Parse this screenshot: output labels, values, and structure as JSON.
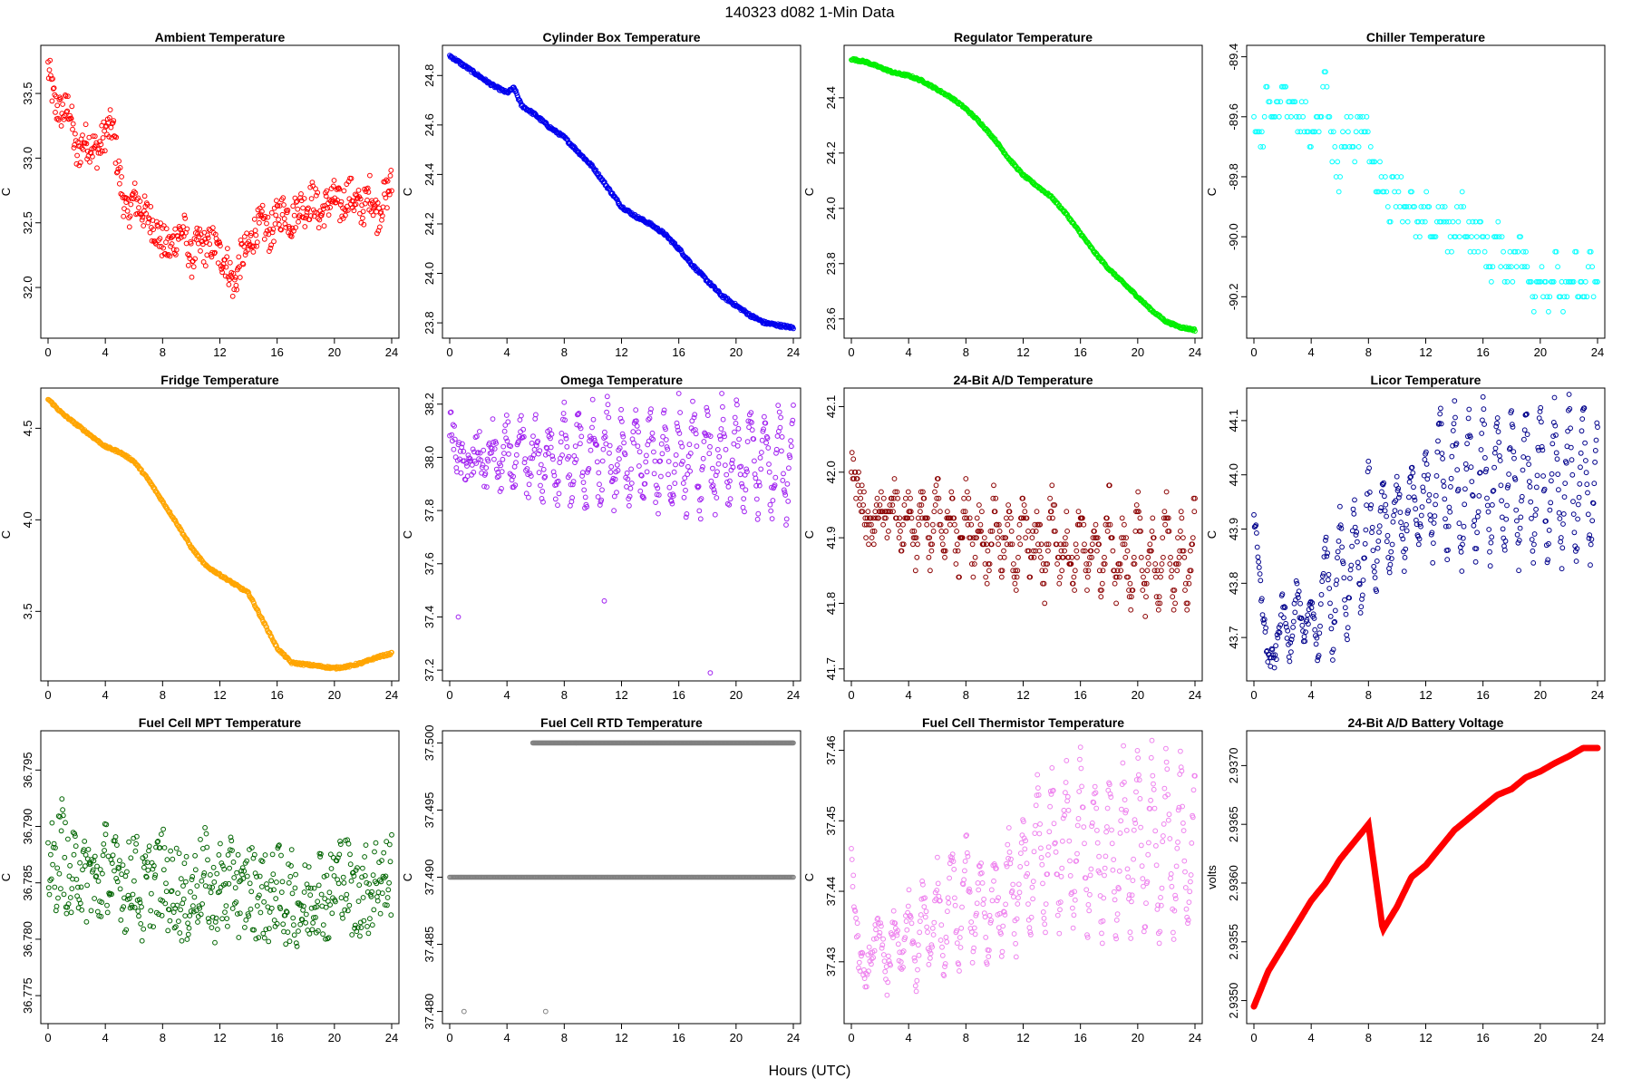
{
  "header": {
    "title": "140323    d082    1-Min Data"
  },
  "footer": {
    "xlabel": "Hours (UTC)"
  },
  "chart_data": [
    {
      "type": "scatter",
      "title": "Ambient Temperature",
      "ylabel": "C",
      "color": "#ff0000",
      "xlim": [
        0,
        24
      ],
      "ylim": [
        31.65,
        33.83
      ],
      "xticks": [
        0,
        4,
        8,
        12,
        16,
        20,
        24
      ],
      "yticks": [
        32.0,
        32.5,
        33.0,
        33.5
      ],
      "ytick_labels": [
        "32.0",
        "32.5",
        "33.0",
        "33.5"
      ],
      "x": [
        0,
        0.5,
        1,
        1.5,
        2,
        2.5,
        3,
        3.5,
        4,
        4.5,
        5,
        5.5,
        6,
        6.5,
        7,
        7.5,
        8,
        8.5,
        9,
        9.5,
        10,
        10.5,
        11,
        11.5,
        12,
        12.5,
        13,
        13.5,
        14,
        14.5,
        15,
        15.5,
        16,
        16.5,
        17,
        17.5,
        18,
        18.5,
        19,
        19.5,
        20,
        20.5,
        21,
        21.5,
        22,
        22.5,
        23,
        23.5,
        24
      ],
      "values": [
        33.7,
        33.4,
        33.35,
        33.4,
        33.0,
        33.15,
        33.1,
        33.05,
        33.2,
        33.25,
        32.85,
        32.55,
        32.7,
        32.6,
        32.55,
        32.45,
        32.35,
        32.3,
        32.4,
        32.45,
        32.2,
        32.35,
        32.3,
        32.35,
        32.25,
        32.2,
        32.0,
        32.25,
        32.3,
        32.45,
        32.5,
        32.4,
        32.55,
        32.6,
        32.5,
        32.65,
        32.6,
        32.7,
        32.55,
        32.65,
        32.7,
        32.6,
        32.75,
        32.65,
        32.6,
        32.75,
        32.55,
        32.7,
        32.8
      ]
    },
    {
      "type": "scatter",
      "title": "Cylinder Box Temperature",
      "ylabel": "C",
      "color": "#0000ee",
      "xlim": [
        0,
        24
      ],
      "ylim": [
        23.76,
        24.9
      ],
      "xticks": [
        0,
        4,
        8,
        12,
        16,
        20,
        24
      ],
      "yticks": [
        23.8,
        24.0,
        24.2,
        24.4,
        24.6,
        24.8
      ],
      "ytick_labels": [
        "23.8",
        "24.0",
        "24.2",
        "24.4",
        "24.6",
        "24.8"
      ],
      "x": [
        0,
        1,
        2,
        3,
        4,
        4.5,
        5,
        6,
        7,
        8,
        9,
        10,
        11,
        12,
        13,
        14,
        15,
        16,
        17,
        18,
        19,
        20,
        21,
        22,
        23,
        24
      ],
      "values": [
        24.88,
        24.84,
        24.8,
        24.76,
        24.73,
        24.75,
        24.68,
        24.64,
        24.59,
        24.55,
        24.49,
        24.43,
        24.35,
        24.27,
        24.23,
        24.2,
        24.16,
        24.1,
        24.03,
        23.97,
        23.91,
        23.87,
        23.83,
        23.8,
        23.79,
        23.78
      ]
    },
    {
      "type": "scatter",
      "title": "Regulator Temperature",
      "ylabel": "C",
      "color": "#00ee00",
      "xlim": [
        0,
        24
      ],
      "ylim": [
        23.55,
        24.57
      ],
      "xticks": [
        0,
        4,
        8,
        12,
        16,
        20,
        24
      ],
      "yticks": [
        23.6,
        23.8,
        24.0,
        24.2,
        24.4
      ],
      "ytick_labels": [
        "23.6",
        "23.8",
        "24.0",
        "24.2",
        "24.4"
      ],
      "x": [
        0,
        1,
        2,
        3,
        4,
        5,
        6,
        7,
        8,
        9,
        10,
        11,
        12,
        13,
        14,
        15,
        16,
        17,
        18,
        19,
        20,
        21,
        22,
        23,
        24
      ],
      "values": [
        24.54,
        24.53,
        24.51,
        24.49,
        24.48,
        24.46,
        24.43,
        24.4,
        24.36,
        24.31,
        24.25,
        24.18,
        24.12,
        24.08,
        24.04,
        23.98,
        23.91,
        23.84,
        23.78,
        23.73,
        23.68,
        23.63,
        23.59,
        23.57,
        23.56
      ]
    },
    {
      "type": "scatter",
      "title": "Chiller Temperature",
      "ylabel": "C",
      "color": "#00ffff",
      "xlim": [
        0,
        24
      ],
      "ylim": [
        -90.32,
        -89.38
      ],
      "xticks": [
        0,
        4,
        8,
        12,
        16,
        20,
        24
      ],
      "yticks": [
        -89.4,
        -89.6,
        -89.8,
        -90.0,
        -90.2
      ],
      "ytick_labels": [
        "-89.4",
        "-89.6",
        "-89.8",
        "-90.0",
        "-90.2"
      ],
      "x": [
        0,
        0.5,
        1,
        1.5,
        2,
        2.5,
        3,
        3.5,
        4,
        4.5,
        5,
        5.5,
        6,
        6.5,
        7,
        7.5,
        8,
        8.5,
        9,
        9.5,
        10,
        10.5,
        11,
        11.5,
        12,
        12.5,
        13,
        13.5,
        14,
        14.5,
        15,
        15.5,
        16,
        16.5,
        17,
        17.5,
        18,
        18.5,
        19,
        19.5,
        20,
        20.5,
        21,
        21.5,
        22,
        22.5,
        23,
        23.5,
        24
      ],
      "values": [
        -89.6,
        -89.7,
        -89.5,
        -89.6,
        -89.5,
        -89.6,
        -89.6,
        -89.6,
        -89.7,
        -89.6,
        -89.5,
        -89.7,
        -89.8,
        -89.6,
        -89.7,
        -89.6,
        -89.7,
        -89.8,
        -89.8,
        -89.9,
        -89.8,
        -89.9,
        -89.9,
        -90.0,
        -89.9,
        -90.0,
        -89.9,
        -90.0,
        -90.0,
        -89.9,
        -90.0,
        -90.0,
        -90.0,
        -90.1,
        -90.0,
        -90.1,
        -90.1,
        -90.0,
        -90.1,
        -90.2,
        -90.1,
        -90.2,
        -90.1,
        -90.2,
        -90.2,
        -90.1,
        -90.2,
        -90.1,
        -90.2
      ]
    },
    {
      "type": "scatter",
      "title": "Fridge Temperature",
      "ylabel": "C",
      "color": "#ffa500",
      "xlim": [
        0,
        24
      ],
      "ylim": [
        3.15,
        4.69
      ],
      "xticks": [
        0,
        4,
        8,
        12,
        16,
        20,
        24
      ],
      "yticks": [
        3.5,
        4.0,
        4.5
      ],
      "ytick_labels": [
        "3.5",
        "4.0",
        "4.5"
      ],
      "x": [
        0,
        1,
        2,
        3,
        4,
        5,
        6,
        7,
        8,
        9,
        10,
        11,
        12,
        13,
        14,
        15,
        16,
        17,
        18,
        19,
        20,
        21,
        22,
        23,
        24
      ],
      "values": [
        4.66,
        4.58,
        4.52,
        4.46,
        4.4,
        4.37,
        4.32,
        4.22,
        4.1,
        3.98,
        3.85,
        3.75,
        3.7,
        3.65,
        3.6,
        3.45,
        3.3,
        3.22,
        3.21,
        3.2,
        3.19,
        3.2,
        3.22,
        3.25,
        3.27
      ]
    },
    {
      "type": "scatter",
      "title": "Omega Temperature",
      "ylabel": "C",
      "color": "#a020f0",
      "xlim": [
        0,
        24
      ],
      "ylim": [
        37.18,
        38.24
      ],
      "xticks": [
        0,
        4,
        8,
        12,
        16,
        20,
        24
      ],
      "yticks": [
        37.2,
        37.4,
        37.6,
        37.8,
        38.0,
        38.2
      ],
      "ytick_labels": [
        "37.2",
        "37.4",
        "37.6",
        "37.8",
        "38.0",
        "38.2"
      ],
      "x": [
        0,
        0.5,
        1,
        1.5,
        2,
        2.5,
        3,
        3.5,
        4,
        4.5,
        5,
        5.5,
        6,
        6.5,
        7,
        7.5,
        8,
        8.5,
        9,
        9.5,
        10,
        10.5,
        11,
        11.5,
        12,
        12.5,
        13,
        13.5,
        14,
        14.5,
        15,
        15.5,
        16,
        16.5,
        17,
        17.5,
        18,
        18.5,
        19,
        19.5,
        20,
        20.5,
        21,
        21.5,
        22,
        22.5,
        23,
        23.5,
        24
      ],
      "values": [
        38.15,
        38.0,
        37.98,
        37.95,
        38.05,
        37.92,
        38.08,
        37.9,
        38.1,
        37.88,
        38.12,
        37.86,
        38.13,
        37.85,
        38.14,
        37.84,
        38.15,
        37.83,
        38.16,
        37.82,
        38.16,
        37.82,
        38.17,
        37.81,
        38.17,
        37.81,
        38.18,
        37.8,
        38.18,
        37.8,
        38.18,
        37.8,
        38.18,
        37.8,
        38.18,
        37.8,
        38.18,
        37.8,
        38.18,
        37.8,
        38.18,
        37.8,
        38.18,
        37.8,
        38.18,
        37.8,
        38.18,
        37.8,
        38.2
      ],
      "outliers": [
        [
          0.6,
          37.4
        ],
        [
          10.8,
          37.46
        ],
        [
          18.2,
          37.19
        ]
      ]
    },
    {
      "type": "scatter",
      "title": "24-Bit A/D Temperature",
      "ylabel": "C",
      "color": "#8b0000",
      "xlim": [
        0,
        24
      ],
      "ylim": [
        41.69,
        42.12
      ],
      "xticks": [
        0,
        4,
        8,
        12,
        16,
        20,
        24
      ],
      "yticks": [
        41.7,
        41.8,
        41.9,
        42.0,
        42.1
      ],
      "ytick_labels": [
        "41.7",
        "41.8",
        "41.9",
        "42.0",
        "42.1"
      ],
      "x": [
        0,
        0.5,
        1,
        1.5,
        2,
        2.5,
        3,
        3.5,
        4,
        4.5,
        5,
        5.5,
        6,
        6.5,
        7,
        7.5,
        8,
        8.5,
        9,
        9.5,
        10,
        10.5,
        11,
        11.5,
        12,
        12.5,
        13,
        13.5,
        14,
        14.5,
        15,
        15.5,
        16,
        16.5,
        17,
        17.5,
        18,
        18.5,
        19,
        19.5,
        20,
        20.5,
        21,
        21.5,
        22,
        22.5,
        23,
        23.5,
        24
      ],
      "values": [
        42.02,
        41.98,
        41.93,
        41.9,
        41.95,
        41.92,
        41.97,
        41.9,
        41.96,
        41.88,
        41.97,
        41.86,
        41.98,
        41.88,
        41.96,
        41.85,
        41.97,
        41.87,
        41.94,
        41.85,
        41.96,
        41.86,
        41.93,
        41.84,
        41.95,
        41.86,
        41.92,
        41.83,
        41.97,
        41.85,
        41.92,
        41.83,
        41.95,
        41.82,
        41.93,
        41.82,
        41.96,
        41.81,
        41.92,
        41.8,
        41.95,
        41.8,
        41.92,
        41.79,
        41.96,
        41.8,
        41.92,
        41.8,
        41.97
      ]
    },
    {
      "type": "scatter",
      "title": "Licor Temperature",
      "ylabel": "C",
      "color": "#00008b",
      "xlim": [
        0,
        24
      ],
      "ylim": [
        43.63,
        44.15
      ],
      "xticks": [
        0,
        4,
        8,
        12,
        16,
        20,
        24
      ],
      "yticks": [
        43.7,
        43.8,
        43.9,
        44.0,
        44.1
      ],
      "ytick_labels": [
        "43.7",
        "43.8",
        "43.9",
        "44.0",
        "44.1"
      ],
      "x": [
        0,
        0.5,
        1,
        1.5,
        2,
        2.5,
        3,
        3.5,
        4,
        4.5,
        5,
        5.5,
        6,
        6.5,
        7,
        7.5,
        8,
        8.5,
        9,
        9.5,
        10,
        10.5,
        11,
        11.5,
        12,
        12.5,
        13,
        13.5,
        14,
        14.5,
        15,
        15.5,
        16,
        16.5,
        17,
        17.5,
        18,
        18.5,
        19,
        19.5,
        20,
        20.5,
        21,
        21.5,
        22,
        22.5,
        23,
        23.5,
        24
      ],
      "values": [
        43.93,
        43.78,
        43.66,
        43.66,
        43.77,
        43.67,
        43.8,
        43.68,
        43.78,
        43.66,
        43.9,
        43.67,
        43.93,
        43.7,
        43.95,
        43.74,
        44.02,
        43.78,
        44.0,
        43.82,
        44.0,
        43.84,
        44.02,
        43.86,
        44.05,
        43.85,
        44.13,
        43.84,
        44.13,
        43.83,
        44.12,
        43.84,
        44.13,
        43.84,
        44.13,
        43.84,
        44.13,
        43.84,
        44.13,
        43.84,
        44.13,
        43.84,
        44.13,
        43.84,
        44.14,
        43.84,
        44.15,
        43.84,
        44.1
      ]
    },
    {
      "type": "scatter",
      "title": "Fuel Cell MPT Temperature",
      "ylabel": "C",
      "color": "#006400",
      "xlim": [
        0,
        24
      ],
      "ylim": [
        36.773,
        36.798
      ],
      "xticks": [
        0,
        4,
        8,
        12,
        16,
        20,
        24
      ],
      "yticks": [
        36.775,
        36.78,
        36.785,
        36.79,
        36.795
      ],
      "ytick_labels": [
        "36.775",
        "36.780",
        "36.785",
        "36.790",
        "36.795"
      ],
      "x": [
        0,
        0.5,
        1,
        1.5,
        2,
        2.5,
        3,
        3.5,
        4,
        4.5,
        5,
        5.5,
        6,
        6.5,
        7,
        7.5,
        8,
        8.5,
        9,
        9.5,
        10,
        10.5,
        11,
        11.5,
        12,
        12.5,
        13,
        13.5,
        14,
        14.5,
        15,
        15.5,
        16,
        16.5,
        17,
        17.5,
        18,
        18.5,
        19,
        19.5,
        20,
        20.5,
        21,
        21.5,
        22,
        22.5,
        23,
        23.5,
        24
      ],
      "values": [
        36.787,
        36.786,
        36.789,
        36.784,
        36.787,
        36.785,
        36.786,
        36.784,
        36.787,
        36.785,
        36.786,
        36.784,
        36.787,
        36.783,
        36.785,
        36.785,
        36.786,
        36.784,
        36.785,
        36.783,
        36.784,
        36.785,
        36.786,
        36.783,
        36.785,
        36.784,
        36.786,
        36.783,
        36.785,
        36.784,
        36.784,
        36.783,
        36.785,
        36.783,
        36.784,
        36.783,
        36.783,
        36.784,
        36.785,
        36.783,
        36.785,
        36.786,
        36.785,
        36.783,
        36.785,
        36.784,
        36.786,
        36.785,
        36.786
      ]
    },
    {
      "type": "scatter",
      "title": "Fuel Cell RTD Temperature",
      "ylabel": "C",
      "color": "#808080",
      "xlim": [
        0,
        24
      ],
      "ylim": [
        37.4795,
        37.5005
      ],
      "xticks": [
        0,
        4,
        8,
        12,
        16,
        20,
        24
      ],
      "yticks": [
        37.48,
        37.485,
        37.49,
        37.495,
        37.5
      ],
      "ytick_labels": [
        "37.480",
        "37.485",
        "37.490",
        "37.495",
        "37.500"
      ],
      "levels": [
        {
          "value": 37.49,
          "from": 0,
          "to": 24
        },
        {
          "value": 37.5,
          "from": 5.8,
          "to": 24
        }
      ],
      "outliers": [
        [
          1.0,
          37.48
        ],
        [
          6.7,
          37.48
        ]
      ]
    },
    {
      "type": "scatter",
      "title": "Fuel Cell Thermistor Temperature",
      "ylabel": "C",
      "color": "#ee82ee",
      "xlim": [
        0,
        24
      ],
      "ylim": [
        37.422,
        37.462
      ],
      "xticks": [
        0,
        4,
        8,
        12,
        16,
        20,
        24
      ],
      "yticks": [
        37.43,
        37.44,
        37.45,
        37.46
      ],
      "ytick_labels": [
        "37.43",
        "37.44",
        "37.45",
        "37.46"
      ],
      "x": [
        0,
        0.5,
        1,
        1.5,
        2,
        2.5,
        3,
        3.5,
        4,
        4.5,
        5,
        5.5,
        6,
        6.5,
        7,
        7.5,
        8,
        8.5,
        9,
        9.5,
        10,
        10.5,
        11,
        11.5,
        12,
        12.5,
        13,
        13.5,
        14,
        14.5,
        15,
        15.5,
        16,
        16.5,
        17,
        17.5,
        18,
        18.5,
        19,
        19.5,
        20,
        20.5,
        21,
        21.5,
        22,
        22.5,
        23,
        23.5,
        24
      ],
      "values": [
        37.445,
        37.431,
        37.428,
        37.432,
        37.436,
        37.427,
        37.437,
        37.428,
        37.439,
        37.427,
        37.441,
        37.429,
        37.443,
        37.427,
        37.447,
        37.429,
        37.448,
        37.43,
        37.445,
        37.43,
        37.445,
        37.431,
        37.448,
        37.432,
        37.452,
        37.433,
        37.456,
        37.434,
        37.457,
        37.435,
        37.458,
        37.434,
        37.459,
        37.434,
        37.457,
        37.433,
        37.458,
        37.433,
        37.459,
        37.434,
        37.46,
        37.433,
        37.46,
        37.432,
        37.46,
        37.432,
        37.46,
        37.433,
        37.458
      ]
    },
    {
      "type": "line",
      "title": "24-Bit A/D Battery Voltage",
      "ylabel": "volts",
      "color": "#ff0000",
      "xlim": [
        0,
        24
      ],
      "ylim": [
        2.93485,
        2.93725
      ],
      "xticks": [
        0,
        4,
        8,
        12,
        16,
        20,
        24
      ],
      "yticks": [
        2.935,
        2.9355,
        2.936,
        2.9365,
        2.937
      ],
      "ytick_labels": [
        "2.9350",
        "2.9355",
        "2.9360",
        "2.9365",
        "2.9370"
      ],
      "x": [
        0,
        1,
        2,
        3,
        4,
        5,
        6,
        7,
        8,
        9,
        10,
        11,
        12,
        13,
        14,
        15,
        16,
        17,
        18,
        19,
        20,
        21,
        22,
        23,
        24
      ],
      "values": [
        2.93495,
        2.93525,
        2.93545,
        2.93565,
        2.93585,
        2.936,
        2.9362,
        2.93635,
        2.9365,
        2.9356,
        2.9358,
        2.93605,
        2.93615,
        2.9363,
        2.93645,
        2.93655,
        2.93665,
        2.93675,
        2.9368,
        2.9369,
        2.93695,
        2.93702,
        2.93708,
        2.93715,
        2.93715
      ]
    }
  ]
}
